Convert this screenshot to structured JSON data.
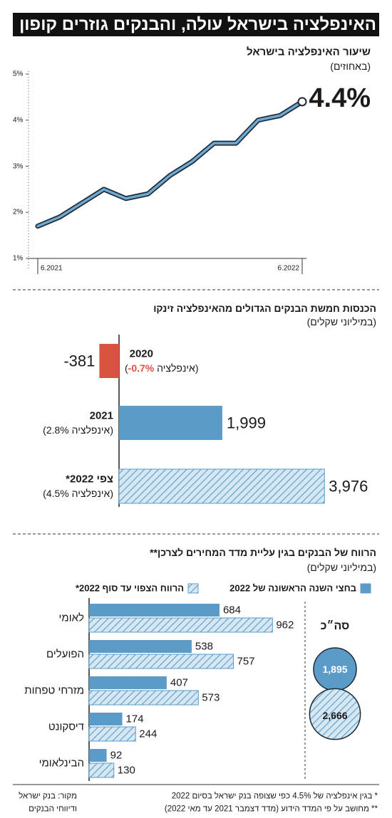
{
  "title": "האינפלציה בישראל עולה, והבנקים גוזרים קופון",
  "chart_data": [
    {
      "type": "line",
      "title": "שיעור האינפלציה בישראל",
      "subtitle": "(באחוזים)",
      "categories": [
        "6.2021",
        null,
        null,
        null,
        null,
        null,
        null,
        null,
        null,
        null,
        null,
        null,
        "6.2022"
      ],
      "values": [
        1.7,
        1.9,
        2.2,
        2.5,
        2.3,
        2.4,
        2.8,
        3.1,
        3.5,
        3.5,
        4.0,
        4.1,
        4.4
      ],
      "end_label": "4.4%",
      "color": "#6fa8d0",
      "ylim": [
        1,
        5
      ],
      "yticks": [
        {
          "value": 1,
          "label": "1%"
        },
        {
          "value": 2,
          "label": "2%"
        },
        {
          "value": 3,
          "label": "3%"
        },
        {
          "value": 4,
          "label": "4%"
        },
        {
          "value": 5,
          "label": "5%"
        }
      ],
      "grid": false
    },
    {
      "type": "hbar",
      "title": "הכנסות חמשת הבנקים הגדולים מהאינפלציה זינקו",
      "subtitle": "(במיליוני שקלים)",
      "categories": [
        "2020",
        "2021",
        "צפי 2022*"
      ],
      "notes": [
        [
          "(אינפלציה ",
          "-0.7%",
          ")"
        ],
        [
          "(אינפלציה 2.8%)"
        ],
        [
          "(אינפלציה 4.5%)"
        ]
      ],
      "note_highlight": "#d9543f",
      "values": [
        -381,
        1999,
        3976
      ],
      "value_labels": [
        "-381",
        "1,999",
        "3,976"
      ],
      "colors": [
        "#d9543f",
        "#5b9bc8",
        "#5b9bc8"
      ],
      "hatched": [
        false,
        false,
        true
      ]
    },
    {
      "type": "grouped_hbar",
      "title": "הרווח של הבנקים בגין עליית מדד המחירים לצרכן**",
      "subtitle": "(במיליוני שקלים)",
      "categories": [
        "לאומי",
        "הפועלים",
        "מזרחי טפחות",
        "דיסקונט",
        "הבינלאומי"
      ],
      "series": [
        {
          "name": "בחצי השנה הראשונה של 2022",
          "color": "#5b9bc8",
          "hatched": false,
          "values": [
            684,
            538,
            407,
            174,
            92
          ]
        },
        {
          "name": "הרווח הצפוי עד סוף 2022*",
          "color": "#5b9bc8",
          "hatched": true,
          "values": [
            962,
            757,
            573,
            244,
            130
          ]
        }
      ],
      "totals": {
        "label": "סה״כ",
        "values": [
          1895,
          2666
        ],
        "value_labels": [
          "1,895",
          "2,666"
        ]
      }
    }
  ],
  "footnotes": [
    "* בגין אינפלציה של 4.5% כפי שצופה בנק ישראל בסיום 2022",
    "** מחושב על פי המדד הידוע (מדד דצמבר 2021 עד מאי 2022)"
  ],
  "source": [
    "מקור: בנק ישראל",
    "ודיווחי הבנקים"
  ]
}
